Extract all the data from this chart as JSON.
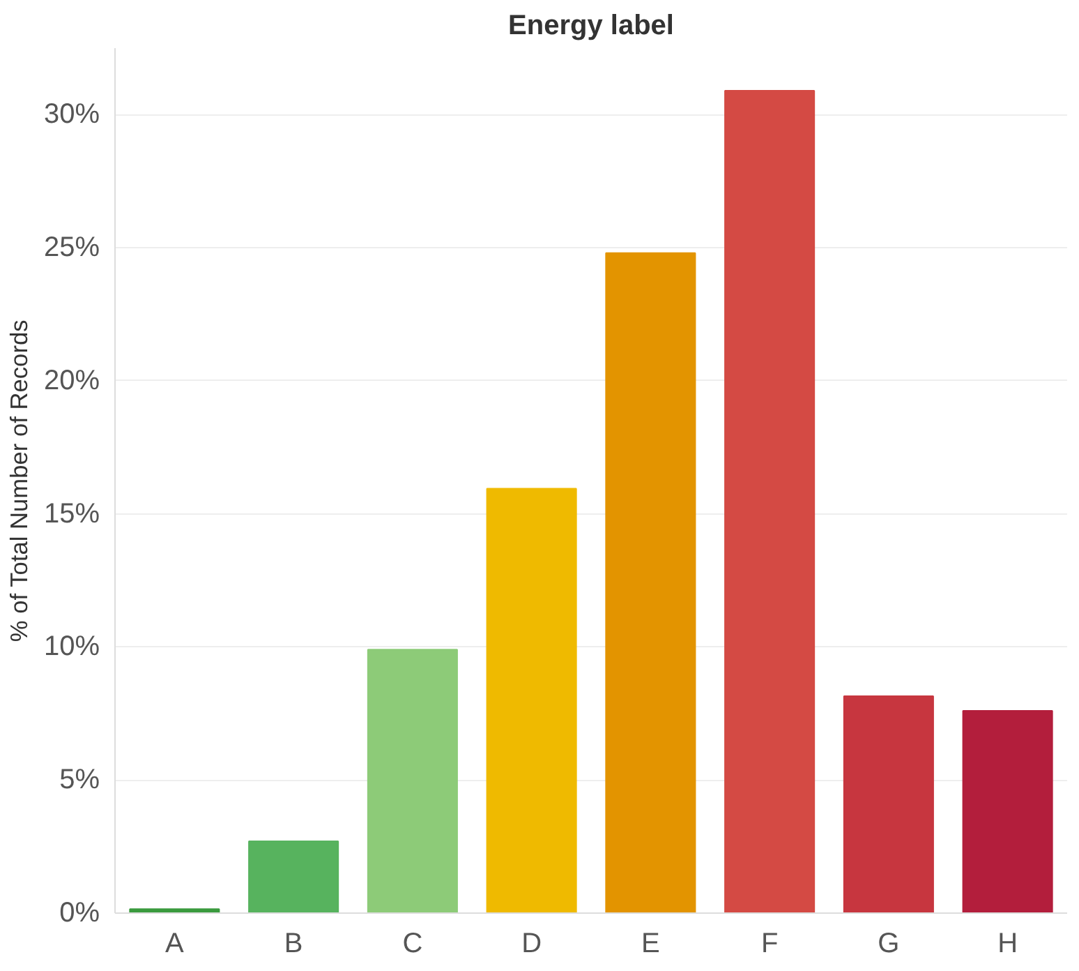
{
  "chart_data": {
    "type": "bar",
    "title": "Energy label",
    "ylabel": "% of Total Number of Records",
    "categories": [
      "A",
      "B",
      "C",
      "D",
      "E",
      "F",
      "G",
      "H"
    ],
    "values": [
      0.15,
      2.7,
      9.9,
      15.95,
      24.8,
      30.9,
      8.15,
      7.6
    ],
    "colors": [
      "#3a9a3e",
      "#57b35e",
      "#8dcb78",
      "#efba00",
      "#e39400",
      "#d44a44",
      "#c7363f",
      "#b31e3c"
    ],
    "ylim": [
      0,
      32.5
    ],
    "yticks": [
      {
        "value": 0,
        "label": "0%"
      },
      {
        "value": 5,
        "label": "5%"
      },
      {
        "value": 10,
        "label": "10%"
      },
      {
        "value": 15,
        "label": "15%"
      },
      {
        "value": 20,
        "label": "20%"
      },
      {
        "value": 25,
        "label": "25%"
      },
      {
        "value": 30,
        "label": "30%"
      }
    ],
    "grid": "y"
  }
}
